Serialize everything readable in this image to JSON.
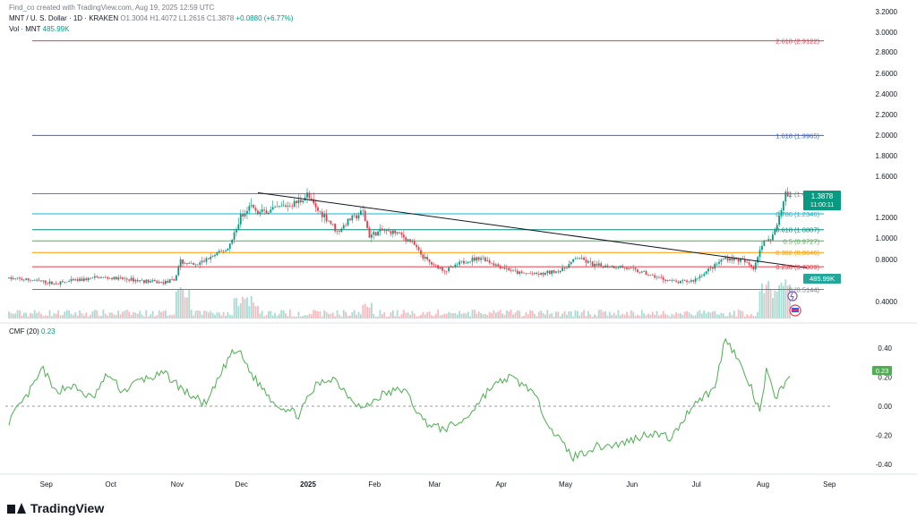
{
  "header": {
    "created_by": "Find_co created with TradingView.com, Aug 19, 2025 12:59 UTC",
    "symbol": "MNT / U. S. Dollar · 1D · KRAKEN",
    "ohlc": {
      "o": "O1.3004",
      "h": "H1.4072",
      "l": "L1.2616",
      "c": "C1.3878",
      "chg": "+0.0880 (+6.77%)"
    },
    "vol_label": "Vol · MNT",
    "vol_value": "485.99K"
  },
  "brand": {
    "name": "TradingView",
    "icon": "tradingview-logo-icon"
  },
  "colors": {
    "up": "#089981",
    "down": "#f23645",
    "cmf": "#4caf50",
    "fib_1618": "#2962ff",
    "fib_2618": "#f23645",
    "fib_0618": "#00897b",
    "fib_05": "#4caf50",
    "fib_0382": "#ff9800",
    "fib_0236": "#f23645",
    "fib_0786": "#00bcd4",
    "fib_0": "#787b86",
    "fib_1": "#787b86"
  },
  "price_axis": {
    "ticks": [
      "3.2000",
      "3.0000",
      "2.8000",
      "2.6000",
      "2.4000",
      "2.2000",
      "2.0000",
      "1.8000",
      "1.6000",
      "1.2000",
      "1.0000",
      "0.8000",
      "0.4000"
    ]
  },
  "price_badge": {
    "price": "1.3878",
    "countdown": "11:00:11"
  },
  "vol_badge": "485.99K",
  "time_axis": [
    "Sep",
    "Oct",
    "Nov",
    "Dec",
    "2025",
    "Feb",
    "Mar",
    "Apr",
    "May",
    "Jun",
    "Jul",
    "Aug",
    "Sep"
  ],
  "fib_levels": [
    {
      "label": "2.618 (2.9122)",
      "price": 2.9122,
      "color": "#f23645"
    },
    {
      "label": "1.618 (1.9965)",
      "price": 1.9965,
      "color": "#2962ff"
    },
    {
      "label": "1 (1.4305)",
      "price": 1.4305,
      "color": "#787b86"
    },
    {
      "label": "0.786 (1.2346)",
      "price": 1.2346,
      "color": "#00bcd4"
    },
    {
      "label": "0.618 (1.0807)",
      "price": 1.0807,
      "color": "#00897b"
    },
    {
      "label": "0.5 (0.9727)",
      "price": 0.9727,
      "color": "#4caf50"
    },
    {
      "label": "0.382 (0.8646)",
      "price": 0.8646,
      "color": "#ff9800"
    },
    {
      "label": "0.236 (0.7309)",
      "price": 0.7309,
      "color": "#f23645"
    },
    {
      "label": "0 (0.5144)",
      "price": 0.5144,
      "color": "#787b86"
    }
  ],
  "cmf": {
    "label": "CMF (20)",
    "value": "0.23",
    "axis_ticks": [
      "0.40",
      "0.20",
      "0.00",
      "-0.20",
      "-0.40"
    ]
  },
  "chart_data": [
    {
      "type": "candlestick",
      "title": "MNT / U. S. Dollar · 1D · KRAKEN",
      "x_range": [
        "2024-08-20",
        "2025-09-08"
      ],
      "ylim": [
        0.35,
        3.25
      ],
      "trendline": {
        "from": {
          "date": "2024-12-14",
          "price": 1.44
        },
        "to": {
          "date": "2025-08-27",
          "price": 0.72
        }
      },
      "price_path": [
        [
          "2024-08-20",
          0.62
        ],
        [
          "2024-09-01",
          0.6
        ],
        [
          "2024-09-10",
          0.57
        ],
        [
          "2024-09-20",
          0.6
        ],
        [
          "2024-10-01",
          0.63
        ],
        [
          "2024-10-15",
          0.61
        ],
        [
          "2024-10-30",
          0.58
        ],
        [
          "2024-11-05",
          0.6
        ],
        [
          "2024-11-08",
          0.78
        ],
        [
          "2024-11-15",
          0.74
        ],
        [
          "2024-11-22",
          0.82
        ],
        [
          "2024-11-30",
          0.9
        ],
        [
          "2024-12-06",
          1.2
        ],
        [
          "2024-12-10",
          1.33
        ],
        [
          "2024-12-14",
          1.24
        ],
        [
          "2024-12-20",
          1.27
        ],
        [
          "2024-12-25",
          1.3
        ],
        [
          "2025-01-02",
          1.35
        ],
        [
          "2025-01-06",
          1.42
        ],
        [
          "2025-01-10",
          1.28
        ],
        [
          "2025-01-15",
          1.2
        ],
        [
          "2025-01-20",
          1.06
        ],
        [
          "2025-01-26",
          1.18
        ],
        [
          "2025-02-01",
          1.25
        ],
        [
          "2025-02-04",
          1.02
        ],
        [
          "2025-02-10",
          1.07
        ],
        [
          "2025-02-17",
          1.05
        ],
        [
          "2025-02-24",
          0.96
        ],
        [
          "2025-03-01",
          0.82
        ],
        [
          "2025-03-06",
          0.74
        ],
        [
          "2025-03-12",
          0.7
        ],
        [
          "2025-03-20",
          0.78
        ],
        [
          "2025-03-28",
          0.82
        ],
        [
          "2025-04-05",
          0.74
        ],
        [
          "2025-04-15",
          0.67
        ],
        [
          "2025-04-25",
          0.66
        ],
        [
          "2025-05-05",
          0.7
        ],
        [
          "2025-05-12",
          0.82
        ],
        [
          "2025-05-20",
          0.74
        ],
        [
          "2025-06-01",
          0.73
        ],
        [
          "2025-06-10",
          0.68
        ],
        [
          "2025-06-20",
          0.62
        ],
        [
          "2025-06-28",
          0.58
        ],
        [
          "2025-07-05",
          0.6
        ],
        [
          "2025-07-12",
          0.7
        ],
        [
          "2025-07-20",
          0.82
        ],
        [
          "2025-07-28",
          0.79
        ],
        [
          "2025-08-02",
          0.72
        ],
        [
          "2025-08-06",
          0.95
        ],
        [
          "2025-08-10",
          0.98
        ],
        [
          "2025-08-14",
          1.2
        ],
        [
          "2025-08-17",
          1.43
        ],
        [
          "2025-08-19",
          1.3878
        ]
      ]
    },
    {
      "type": "line",
      "title": "CMF (20)",
      "ylim": [
        -0.44,
        0.52
      ],
      "series": [
        {
          "values": [
            [
              "2024-08-20",
              -0.1
            ],
            [
              "2024-08-28",
              0.06
            ],
            [
              "2024-09-05",
              0.26
            ],
            [
              "2024-09-10",
              0.1
            ],
            [
              "2024-09-18",
              0.14
            ],
            [
              "2024-09-28",
              0.05
            ],
            [
              "2024-10-05",
              0.22
            ],
            [
              "2024-10-12",
              0.1
            ],
            [
              "2024-10-20",
              0.18
            ],
            [
              "2024-11-01",
              0.22
            ],
            [
              "2024-11-10",
              0.1
            ],
            [
              "2024-11-20",
              0.01
            ],
            [
              "2024-12-01",
              0.35
            ],
            [
              "2024-12-05",
              0.38
            ],
            [
              "2024-12-12",
              0.2
            ],
            [
              "2024-12-22",
              0.02
            ],
            [
              "2025-01-02",
              -0.06
            ],
            [
              "2025-01-10",
              0.14
            ],
            [
              "2025-01-18",
              0.2
            ],
            [
              "2025-01-25",
              0.08
            ],
            [
              "2025-02-01",
              -0.02
            ],
            [
              "2025-02-10",
              0.08
            ],
            [
              "2025-02-20",
              0.12
            ],
            [
              "2025-03-01",
              -0.1
            ],
            [
              "2025-03-10",
              -0.16
            ],
            [
              "2025-03-20",
              -0.1
            ],
            [
              "2025-04-01",
              0.12
            ],
            [
              "2025-04-10",
              0.2
            ],
            [
              "2025-04-20",
              0.12
            ],
            [
              "2025-05-01",
              -0.18
            ],
            [
              "2025-05-10",
              -0.35
            ],
            [
              "2025-05-20",
              -0.28
            ],
            [
              "2025-06-01",
              -0.26
            ],
            [
              "2025-06-15",
              -0.18
            ],
            [
              "2025-06-25",
              -0.22
            ],
            [
              "2025-07-05",
              0.02
            ],
            [
              "2025-07-15",
              0.12
            ],
            [
              "2025-07-20",
              0.48
            ],
            [
              "2025-07-25",
              0.34
            ],
            [
              "2025-08-01",
              0.12
            ],
            [
              "2025-08-05",
              -0.05
            ],
            [
              "2025-08-08",
              0.24
            ],
            [
              "2025-08-12",
              0.06
            ],
            [
              "2025-08-16",
              0.14
            ],
            [
              "2025-08-19",
              0.23
            ]
          ]
        }
      ]
    }
  ]
}
